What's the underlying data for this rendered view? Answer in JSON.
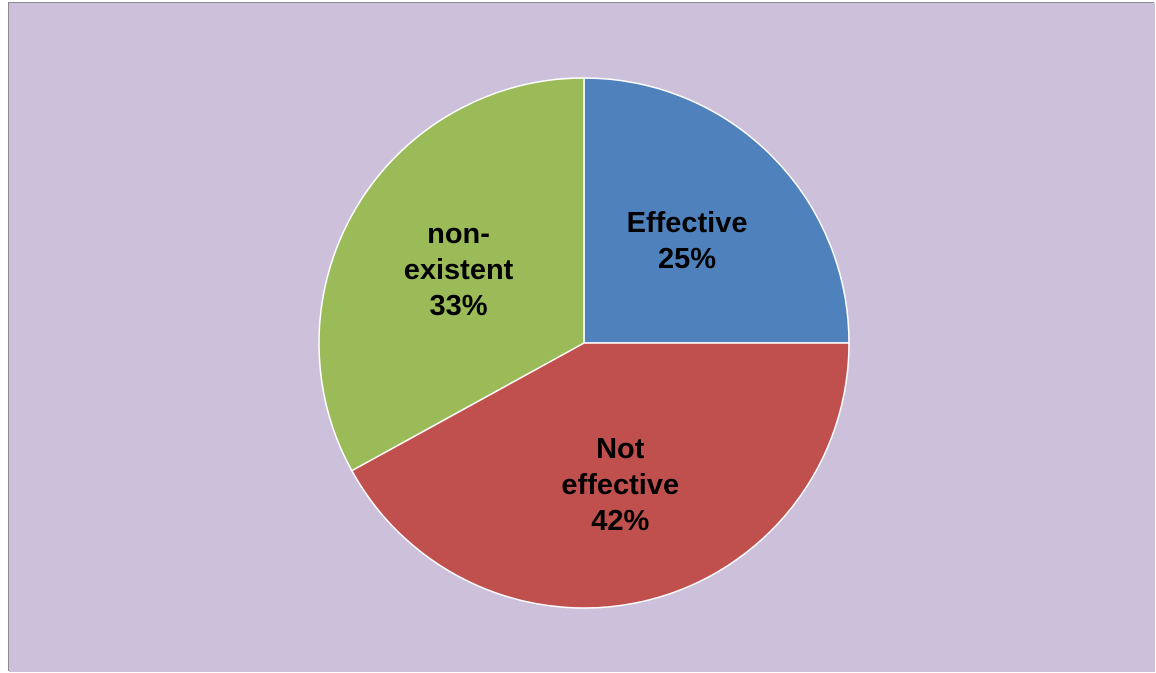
{
  "background_color": "#ccc0da",
  "chart_data": {
    "type": "pie",
    "start_direction": "12 o'clock, clockwise",
    "slices": [
      {
        "label_lines": [
          "Effective"
        ],
        "value_label": "25%",
        "value": 25,
        "color": "#4f81bd"
      },
      {
        "label_lines": [
          "Not",
          "effective"
        ],
        "value_label": "42%",
        "value": 42,
        "color": "#c0504d"
      },
      {
        "label_lines": [
          "non-",
          "existent"
        ],
        "value_label": "33%",
        "value": 33,
        "color": "#9bbb59"
      }
    ],
    "legend": "none"
  }
}
